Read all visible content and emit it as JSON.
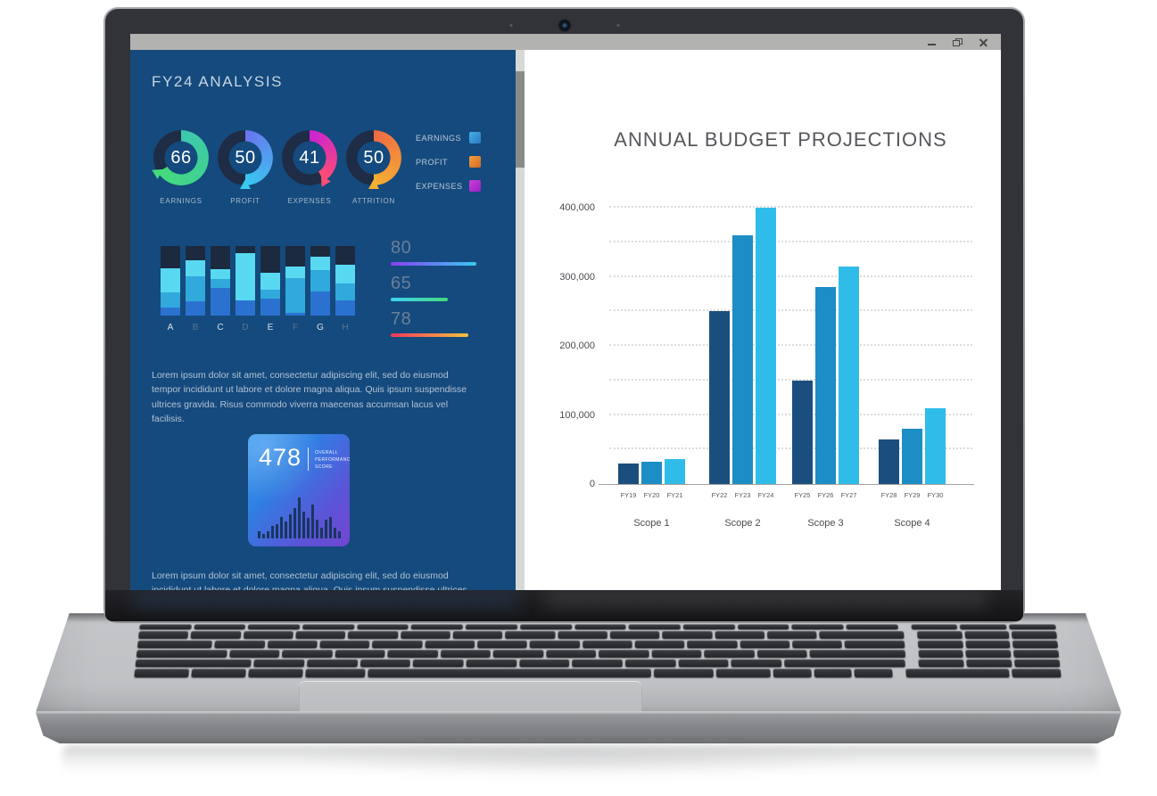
{
  "window": {
    "controls": [
      "minimize",
      "restore",
      "close"
    ]
  },
  "sidebar": {
    "title": "FY24 ANALYSIS",
    "legend": [
      {
        "label": "EARNINGS",
        "color_start": "#45b0e8",
        "color_end": "#2979c4"
      },
      {
        "label": "PROFIT",
        "color_start": "#f0a03f",
        "color_end": "#d2691f"
      },
      {
        "label": "EXPENSES",
        "color_start": "#c940d8",
        "color_end": "#9c1fc4"
      }
    ],
    "paragraph1": "Lorem ipsum dolor sit amet, consectetur adipiscing elit, sed do eiusmod tempor incididunt ut labore et dolore magna aliqua. Quis ipsum suspendisse ultrices gravida. Risus commodo viverra maecenas accumsan lacus vel facilisis.",
    "score_card": {
      "value": "478",
      "label": "OVERALL PERFORMANCE SCORE"
    },
    "paragraph2": "Lorem ipsum dolor sit amet, consectetur adipiscing elit, sed do eiusmod incididunt ut labore et dolore magna aliqua. Quis ipsum suspendisse ultrices"
  },
  "chart_data": [
    {
      "type": "bar",
      "title": "ANNUAL BUDGET PROJECTIONS",
      "groups": [
        "Scope 1",
        "Scope 2",
        "Scope 3",
        "Scope 4"
      ],
      "categories": [
        [
          "FY19",
          "FY20",
          "FY21"
        ],
        [
          "FY22",
          "FY23",
          "FY24"
        ],
        [
          "FY25",
          "FY26",
          "FY27"
        ],
        [
          "FY28",
          "FY29",
          "FY30"
        ]
      ],
      "values": [
        [
          30000,
          32000,
          36000
        ],
        [
          250000,
          360000,
          400000
        ],
        [
          150000,
          285000,
          315000
        ],
        [
          65000,
          80000,
          110000
        ]
      ],
      "bar_colors": [
        "#1a4f7d",
        "#1c8dc5",
        "#2fbce9"
      ],
      "ylim": [
        0,
        400000
      ],
      "yticks": [
        "0",
        "100,000",
        "200,000",
        "300,000",
        "400,000"
      ],
      "grid_step": 50000,
      "grid_style": "dotted",
      "xlabel": "",
      "ylabel": ""
    },
    {
      "type": "gauge",
      "items": [
        {
          "label": "EARNINGS",
          "value": 66,
          "color_start": "#3cc8ae",
          "color_end": "#45d97d"
        },
        {
          "label": "PROFIT",
          "value": 50,
          "color_start": "#6a74ee",
          "color_end": "#38c9f2"
        },
        {
          "label": "EXPENSES",
          "value": 41,
          "color_start": "#c922d4",
          "color_end": "#fd4d72"
        },
        {
          "label": "ATTRITION",
          "value": 50,
          "color_start": "#ef6a45",
          "color_end": "#f6b032"
        }
      ],
      "track_color": "#1e2c45"
    },
    {
      "type": "stacked-bar",
      "categories": [
        "A",
        "B",
        "C",
        "D",
        "E",
        "F",
        "G",
        "H"
      ],
      "segment_colors": [
        "#2b72d0",
        "#31a9dc",
        "#58d9f1"
      ],
      "segments_pct_bottom_up": [
        [
          11,
          22,
          35
        ],
        [
          20,
          37,
          23
        ],
        [
          40,
          12,
          15
        ],
        [
          22,
          0,
          68
        ],
        [
          24,
          13,
          24
        ],
        [
          4,
          50,
          16
        ],
        [
          35,
          30,
          20
        ],
        [
          22,
          24,
          27
        ]
      ],
      "track_color": "#1c2a40"
    },
    {
      "type": "progress-lines",
      "items": [
        {
          "value": "80",
          "pct": 100,
          "color_start": "#8a3ff2",
          "color_end": "#38c9f0"
        },
        {
          "value": "65",
          "pct": 67,
          "color_start": "#3ed3f0",
          "color_end": "#43d97e"
        },
        {
          "value": "78",
          "pct": 91,
          "color_start": "#f4375e",
          "color_end": "#f5c23b"
        }
      ]
    },
    {
      "type": "histogram",
      "values": [
        8,
        5,
        8,
        14,
        16,
        24,
        19,
        27,
        34,
        46,
        30,
        23,
        38,
        21,
        12,
        21,
        24,
        12,
        8
      ],
      "bar_color": "#17375f"
    }
  ]
}
